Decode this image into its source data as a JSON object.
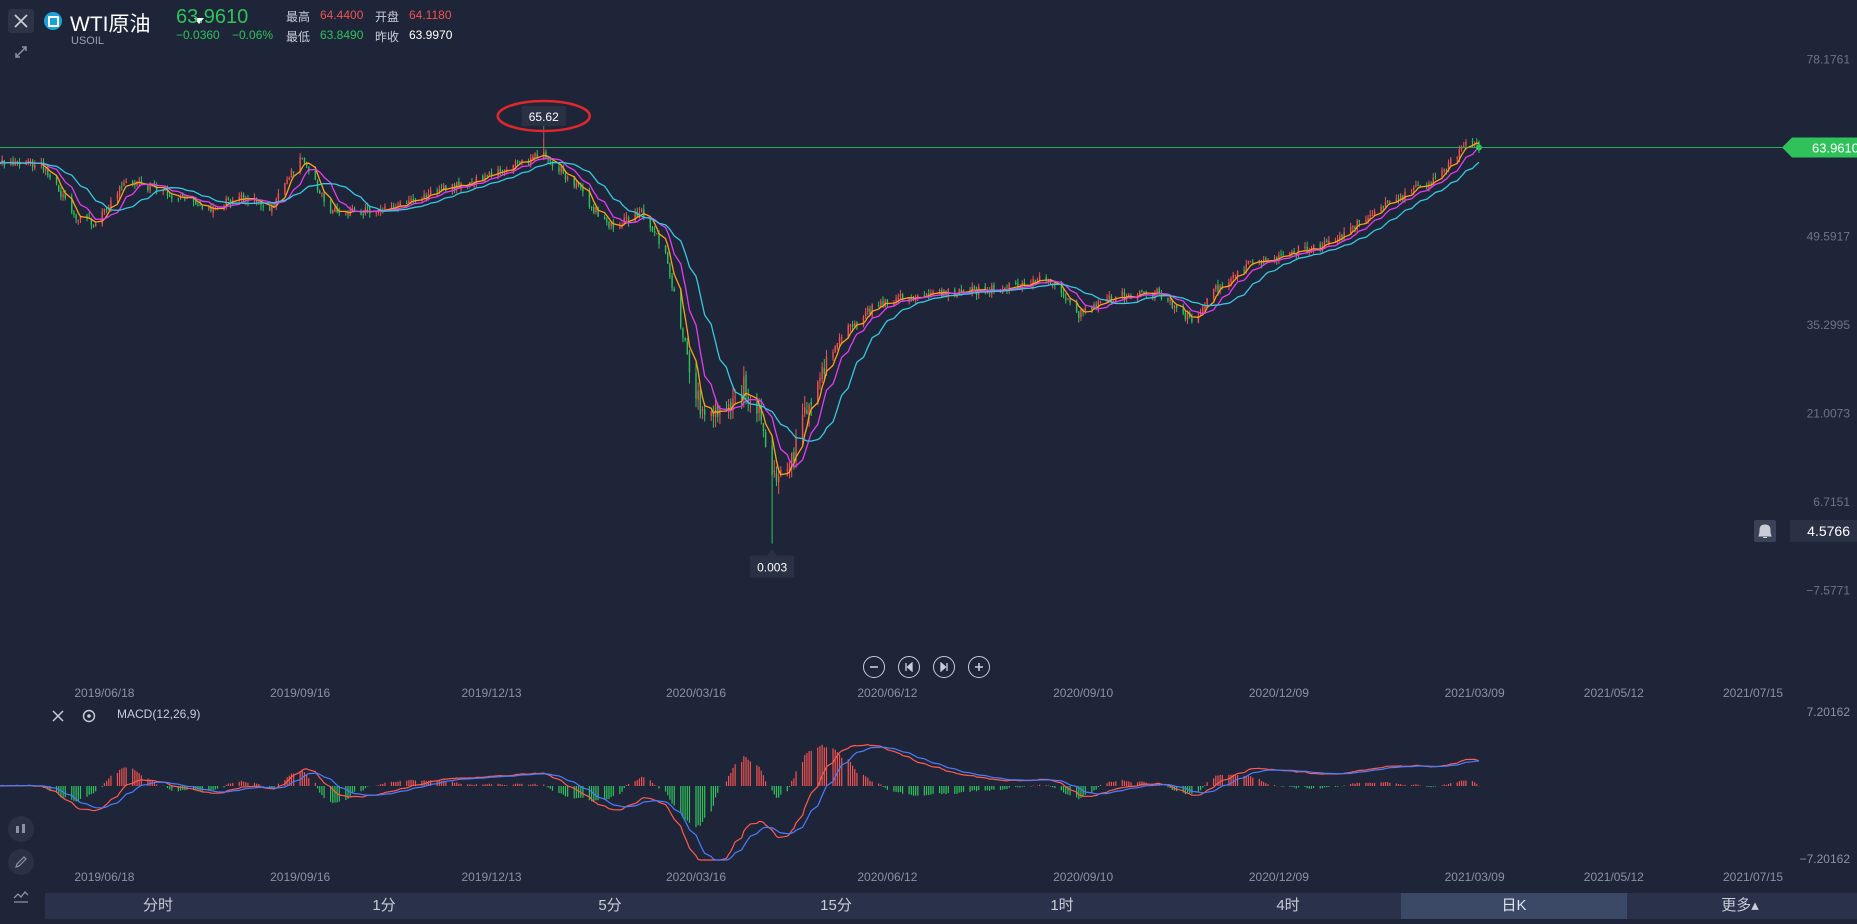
{
  "header": {
    "symbol_name": "WTI原油",
    "symbol_code": "USOIL",
    "last_price": "63.9610",
    "change": "−0.0360",
    "change_pct": "−0.06%",
    "high_label": "最高",
    "high_value": "64.4400",
    "open_label": "开盘",
    "open_value": "64.1180",
    "low_label": "最低",
    "low_value": "63.8490",
    "prev_close_label": "昨收",
    "prev_close_value": "63.9970"
  },
  "colors": {
    "background": "#1e2538",
    "up": "#ef5350",
    "down": "#2fc25b",
    "ma_short": "#ff9f1a",
    "ma_mid": "#e23df0",
    "ma_long": "#38c8e0",
    "macd_dif": "#ff5a4f",
    "macd_dea": "#4a7dff",
    "price_line": "#2fc25b",
    "annotation_circle": "#e0282c"
  },
  "icons": {
    "close": "close-icon",
    "expand": "expand-icon",
    "symbol": "symbol-badge-icon",
    "bell": "bell-icon",
    "settings": "gear-icon"
  },
  "price_axis": {
    "ticks": [
      "78.1761",
      "49.5917",
      "35.2995",
      "21.0073",
      "6.7151",
      "−7.5771"
    ],
    "current_tag": "63.9610",
    "cursor_tag": "4.5766"
  },
  "annotations": {
    "max_label": "65.62",
    "min_label": "0.003"
  },
  "date_ticks": [
    "2019/06/18",
    "2019/09/16",
    "2019/12/13",
    "2020/03/16",
    "2020/06/12",
    "2020/09/10",
    "2020/12/09",
    "2021/03/09",
    "2021/05/12",
    "2021/07/15"
  ],
  "macd": {
    "label": "MACD(12,26,9)",
    "axis_top": "7.20162",
    "axis_bottom": "−7.20162"
  },
  "timeframes": [
    "分时",
    "1分",
    "5分",
    "15分",
    "1时",
    "4时",
    "日K",
    "更多▴"
  ],
  "active_timeframe": "日K",
  "chart_data": {
    "type": "candlestick",
    "x_range": [
      "2019-05-01",
      "2021-08-01"
    ],
    "y_range": [
      -12.339,
      82.94
    ],
    "current_price": 63.961,
    "max": {
      "date": "2020-01-06",
      "value": 65.62
    },
    "min": {
      "date": "2020-04-20",
      "value": 0.003
    },
    "close_path": [
      [
        "2019-05-01",
        61.5
      ],
      [
        "2019-05-20",
        61.0
      ],
      [
        "2019-06-05",
        53.0
      ],
      [
        "2019-06-13",
        51.5
      ],
      [
        "2019-06-28",
        58.5
      ],
      [
        "2019-07-15",
        57.0
      ],
      [
        "2019-08-05",
        54.0
      ],
      [
        "2019-08-20",
        56.0
      ],
      [
        "2019-09-03",
        54.0
      ],
      [
        "2019-09-16",
        62.5
      ],
      [
        "2019-09-30",
        54.0
      ],
      [
        "2019-10-15",
        53.5
      ],
      [
        "2019-10-31",
        54.5
      ],
      [
        "2019-11-20",
        57.0
      ],
      [
        "2019-12-05",
        58.5
      ],
      [
        "2019-12-20",
        60.5
      ],
      [
        "2020-01-06",
        63.0
      ],
      [
        "2020-01-20",
        58.0
      ],
      [
        "2020-02-05",
        51.0
      ],
      [
        "2020-02-21",
        53.5
      ],
      [
        "2020-03-02",
        47.0
      ],
      [
        "2020-03-09",
        35.0
      ],
      [
        "2020-03-18",
        22.0
      ],
      [
        "2020-03-30",
        20.5
      ],
      [
        "2020-04-07",
        25.5
      ],
      [
        "2020-04-15",
        20.0
      ],
      [
        "2020-04-20",
        10.0
      ],
      [
        "2020-04-28",
        12.5
      ],
      [
        "2020-05-08",
        24.0
      ],
      [
        "2020-05-20",
        33.0
      ],
      [
        "2020-06-05",
        38.0
      ],
      [
        "2020-06-20",
        40.0
      ],
      [
        "2020-07-10",
        40.5
      ],
      [
        "2020-07-30",
        41.0
      ],
      [
        "2020-08-25",
        43.0
      ],
      [
        "2020-09-08",
        37.0
      ],
      [
        "2020-09-25",
        40.0
      ],
      [
        "2020-10-15",
        40.5
      ],
      [
        "2020-10-30",
        36.0
      ],
      [
        "2020-11-10",
        41.0
      ],
      [
        "2020-11-25",
        45.0
      ],
      [
        "2020-12-10",
        46.5
      ],
      [
        "2020-12-31",
        48.5
      ],
      [
        "2021-01-20",
        53.0
      ],
      [
        "2021-02-05",
        56.5
      ],
      [
        "2021-02-20",
        59.0
      ],
      [
        "2021-03-05",
        65.0
      ],
      [
        "2021-03-11",
        63.9
      ]
    ],
    "macd_range": [
      -7.20162,
      7.20162
    ]
  }
}
